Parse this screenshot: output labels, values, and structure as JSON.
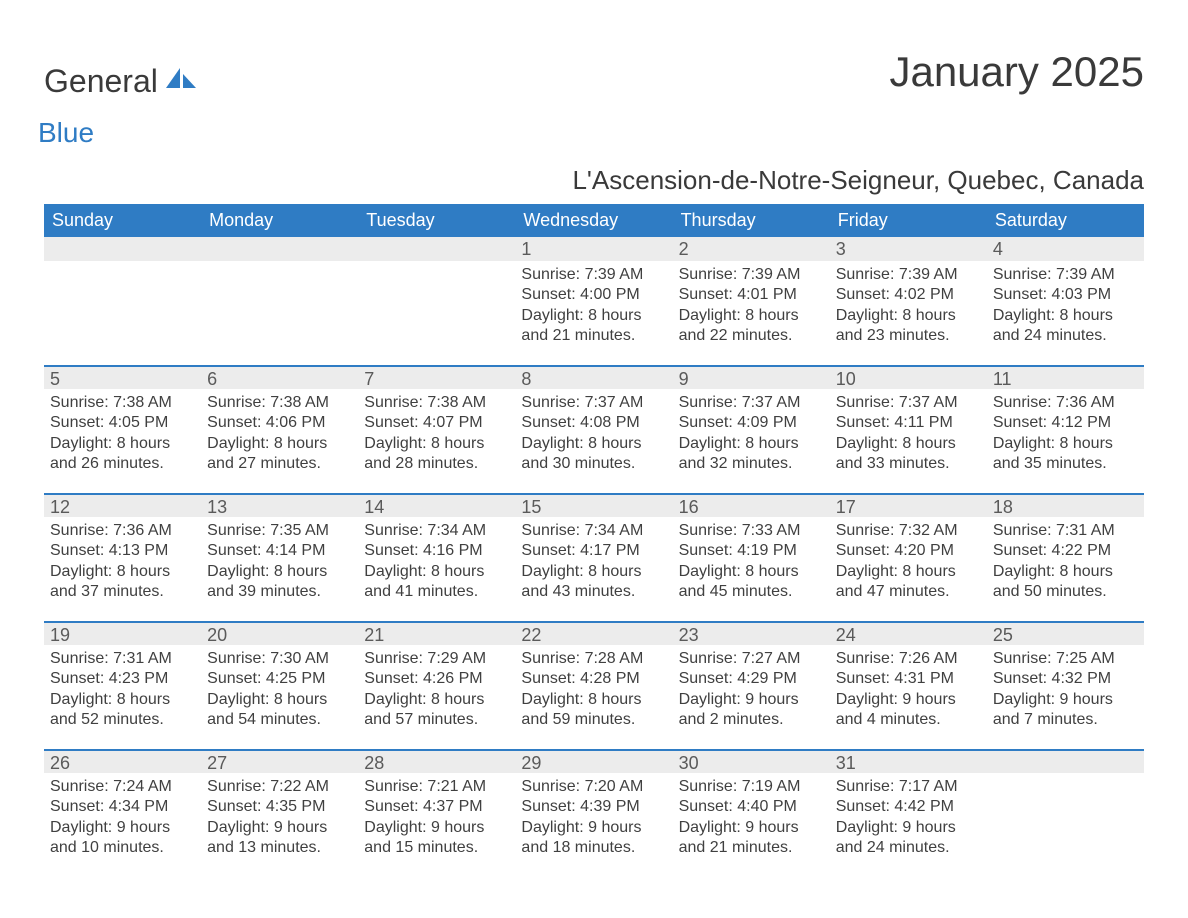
{
  "colors": {
    "header_bg": "#2f7cc4",
    "header_text": "#ffffff",
    "daynum_bg": "#ececec",
    "daynum_border": "#2f7cc4",
    "body_text": "#3a3a3a",
    "cell_text": "#404040",
    "logo_blue": "#2f7cc4",
    "page_bg": "#ffffff"
  },
  "typography": {
    "title_fontsize_pt": 32,
    "subtitle_fontsize_pt": 20,
    "header_fontsize_pt": 14,
    "daynum_fontsize_pt": 14,
    "cell_fontsize_pt": 12,
    "font_family": "Arial"
  },
  "logo": {
    "text1": "General",
    "text2": "Blue"
  },
  "title": "January 2025",
  "subtitle": "L'Ascension-de-Notre-Seigneur, Quebec, Canada",
  "day_headers": [
    "Sunday",
    "Monday",
    "Tuesday",
    "Wednesday",
    "Thursday",
    "Friday",
    "Saturday"
  ],
  "weeks": [
    [
      {
        "blank": true
      },
      {
        "blank": true
      },
      {
        "blank": true
      },
      {
        "day": "1",
        "sunrise": "Sunrise: 7:39 AM",
        "sunset": "Sunset: 4:00 PM",
        "dl1": "Daylight: 8 hours",
        "dl2": "and 21 minutes."
      },
      {
        "day": "2",
        "sunrise": "Sunrise: 7:39 AM",
        "sunset": "Sunset: 4:01 PM",
        "dl1": "Daylight: 8 hours",
        "dl2": "and 22 minutes."
      },
      {
        "day": "3",
        "sunrise": "Sunrise: 7:39 AM",
        "sunset": "Sunset: 4:02 PM",
        "dl1": "Daylight: 8 hours",
        "dl2": "and 23 minutes."
      },
      {
        "day": "4",
        "sunrise": "Sunrise: 7:39 AM",
        "sunset": "Sunset: 4:03 PM",
        "dl1": "Daylight: 8 hours",
        "dl2": "and 24 minutes."
      }
    ],
    [
      {
        "day": "5",
        "sunrise": "Sunrise: 7:38 AM",
        "sunset": "Sunset: 4:05 PM",
        "dl1": "Daylight: 8 hours",
        "dl2": "and 26 minutes."
      },
      {
        "day": "6",
        "sunrise": "Sunrise: 7:38 AM",
        "sunset": "Sunset: 4:06 PM",
        "dl1": "Daylight: 8 hours",
        "dl2": "and 27 minutes."
      },
      {
        "day": "7",
        "sunrise": "Sunrise: 7:38 AM",
        "sunset": "Sunset: 4:07 PM",
        "dl1": "Daylight: 8 hours",
        "dl2": "and 28 minutes."
      },
      {
        "day": "8",
        "sunrise": "Sunrise: 7:37 AM",
        "sunset": "Sunset: 4:08 PM",
        "dl1": "Daylight: 8 hours",
        "dl2": "and 30 minutes."
      },
      {
        "day": "9",
        "sunrise": "Sunrise: 7:37 AM",
        "sunset": "Sunset: 4:09 PM",
        "dl1": "Daylight: 8 hours",
        "dl2": "and 32 minutes."
      },
      {
        "day": "10",
        "sunrise": "Sunrise: 7:37 AM",
        "sunset": "Sunset: 4:11 PM",
        "dl1": "Daylight: 8 hours",
        "dl2": "and 33 minutes."
      },
      {
        "day": "11",
        "sunrise": "Sunrise: 7:36 AM",
        "sunset": "Sunset: 4:12 PM",
        "dl1": "Daylight: 8 hours",
        "dl2": "and 35 minutes."
      }
    ],
    [
      {
        "day": "12",
        "sunrise": "Sunrise: 7:36 AM",
        "sunset": "Sunset: 4:13 PM",
        "dl1": "Daylight: 8 hours",
        "dl2": "and 37 minutes."
      },
      {
        "day": "13",
        "sunrise": "Sunrise: 7:35 AM",
        "sunset": "Sunset: 4:14 PM",
        "dl1": "Daylight: 8 hours",
        "dl2": "and 39 minutes."
      },
      {
        "day": "14",
        "sunrise": "Sunrise: 7:34 AM",
        "sunset": "Sunset: 4:16 PM",
        "dl1": "Daylight: 8 hours",
        "dl2": "and 41 minutes."
      },
      {
        "day": "15",
        "sunrise": "Sunrise: 7:34 AM",
        "sunset": "Sunset: 4:17 PM",
        "dl1": "Daylight: 8 hours",
        "dl2": "and 43 minutes."
      },
      {
        "day": "16",
        "sunrise": "Sunrise: 7:33 AM",
        "sunset": "Sunset: 4:19 PM",
        "dl1": "Daylight: 8 hours",
        "dl2": "and 45 minutes."
      },
      {
        "day": "17",
        "sunrise": "Sunrise: 7:32 AM",
        "sunset": "Sunset: 4:20 PM",
        "dl1": "Daylight: 8 hours",
        "dl2": "and 47 minutes."
      },
      {
        "day": "18",
        "sunrise": "Sunrise: 7:31 AM",
        "sunset": "Sunset: 4:22 PM",
        "dl1": "Daylight: 8 hours",
        "dl2": "and 50 minutes."
      }
    ],
    [
      {
        "day": "19",
        "sunrise": "Sunrise: 7:31 AM",
        "sunset": "Sunset: 4:23 PM",
        "dl1": "Daylight: 8 hours",
        "dl2": "and 52 minutes."
      },
      {
        "day": "20",
        "sunrise": "Sunrise: 7:30 AM",
        "sunset": "Sunset: 4:25 PM",
        "dl1": "Daylight: 8 hours",
        "dl2": "and 54 minutes."
      },
      {
        "day": "21",
        "sunrise": "Sunrise: 7:29 AM",
        "sunset": "Sunset: 4:26 PM",
        "dl1": "Daylight: 8 hours",
        "dl2": "and 57 minutes."
      },
      {
        "day": "22",
        "sunrise": "Sunrise: 7:28 AM",
        "sunset": "Sunset: 4:28 PM",
        "dl1": "Daylight: 8 hours",
        "dl2": "and 59 minutes."
      },
      {
        "day": "23",
        "sunrise": "Sunrise: 7:27 AM",
        "sunset": "Sunset: 4:29 PM",
        "dl1": "Daylight: 9 hours",
        "dl2": "and 2 minutes."
      },
      {
        "day": "24",
        "sunrise": "Sunrise: 7:26 AM",
        "sunset": "Sunset: 4:31 PM",
        "dl1": "Daylight: 9 hours",
        "dl2": "and 4 minutes."
      },
      {
        "day": "25",
        "sunrise": "Sunrise: 7:25 AM",
        "sunset": "Sunset: 4:32 PM",
        "dl1": "Daylight: 9 hours",
        "dl2": "and 7 minutes."
      }
    ],
    [
      {
        "day": "26",
        "sunrise": "Sunrise: 7:24 AM",
        "sunset": "Sunset: 4:34 PM",
        "dl1": "Daylight: 9 hours",
        "dl2": "and 10 minutes."
      },
      {
        "day": "27",
        "sunrise": "Sunrise: 7:22 AM",
        "sunset": "Sunset: 4:35 PM",
        "dl1": "Daylight: 9 hours",
        "dl2": "and 13 minutes."
      },
      {
        "day": "28",
        "sunrise": "Sunrise: 7:21 AM",
        "sunset": "Sunset: 4:37 PM",
        "dl1": "Daylight: 9 hours",
        "dl2": "and 15 minutes."
      },
      {
        "day": "29",
        "sunrise": "Sunrise: 7:20 AM",
        "sunset": "Sunset: 4:39 PM",
        "dl1": "Daylight: 9 hours",
        "dl2": "and 18 minutes."
      },
      {
        "day": "30",
        "sunrise": "Sunrise: 7:19 AM",
        "sunset": "Sunset: 4:40 PM",
        "dl1": "Daylight: 9 hours",
        "dl2": "and 21 minutes."
      },
      {
        "day": "31",
        "sunrise": "Sunrise: 7:17 AM",
        "sunset": "Sunset: 4:42 PM",
        "dl1": "Daylight: 9 hours",
        "dl2": "and 24 minutes."
      },
      {
        "blank": true
      }
    ]
  ]
}
